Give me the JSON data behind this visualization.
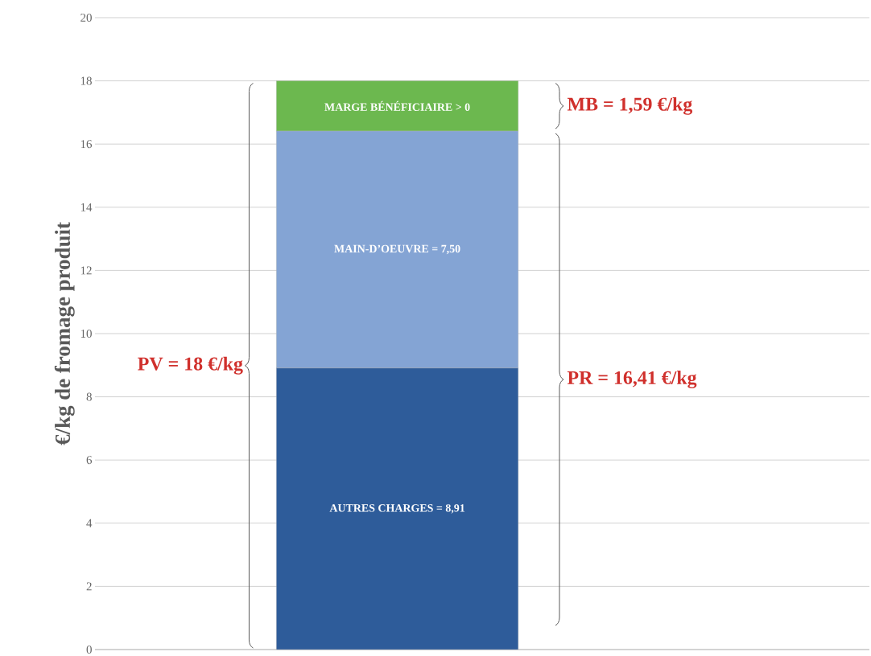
{
  "chart_data": {
    "type": "bar",
    "stacked": true,
    "ylabel": "€/kg de fromage produit",
    "categories": [
      null
    ],
    "series": [
      {
        "color": "#2e5c9a",
        "values": [
          8.91
        ],
        "value_labels": [
          "AUTRES CHARGES = 8,91"
        ]
      },
      {
        "color": "#84a4d4",
        "values": [
          7.5
        ],
        "value_labels": [
          "MAIN-D’OEUVRE = 7,50"
        ]
      },
      {
        "color": "#6cb84f",
        "values": [
          1.59
        ],
        "value_labels": [
          "MARGE BÉNÉFICIAIRE > 0"
        ]
      }
    ],
    "ylim": [
      0,
      20
    ],
    "yticks": [
      0,
      2,
      4,
      6,
      8,
      10,
      12,
      14,
      16,
      18,
      20
    ],
    "grid": "y",
    "annotations": [
      "PV = 18 €/kg",
      "PR = 16,41 €/kg",
      "MB = 1,59 €/kg"
    ]
  }
}
